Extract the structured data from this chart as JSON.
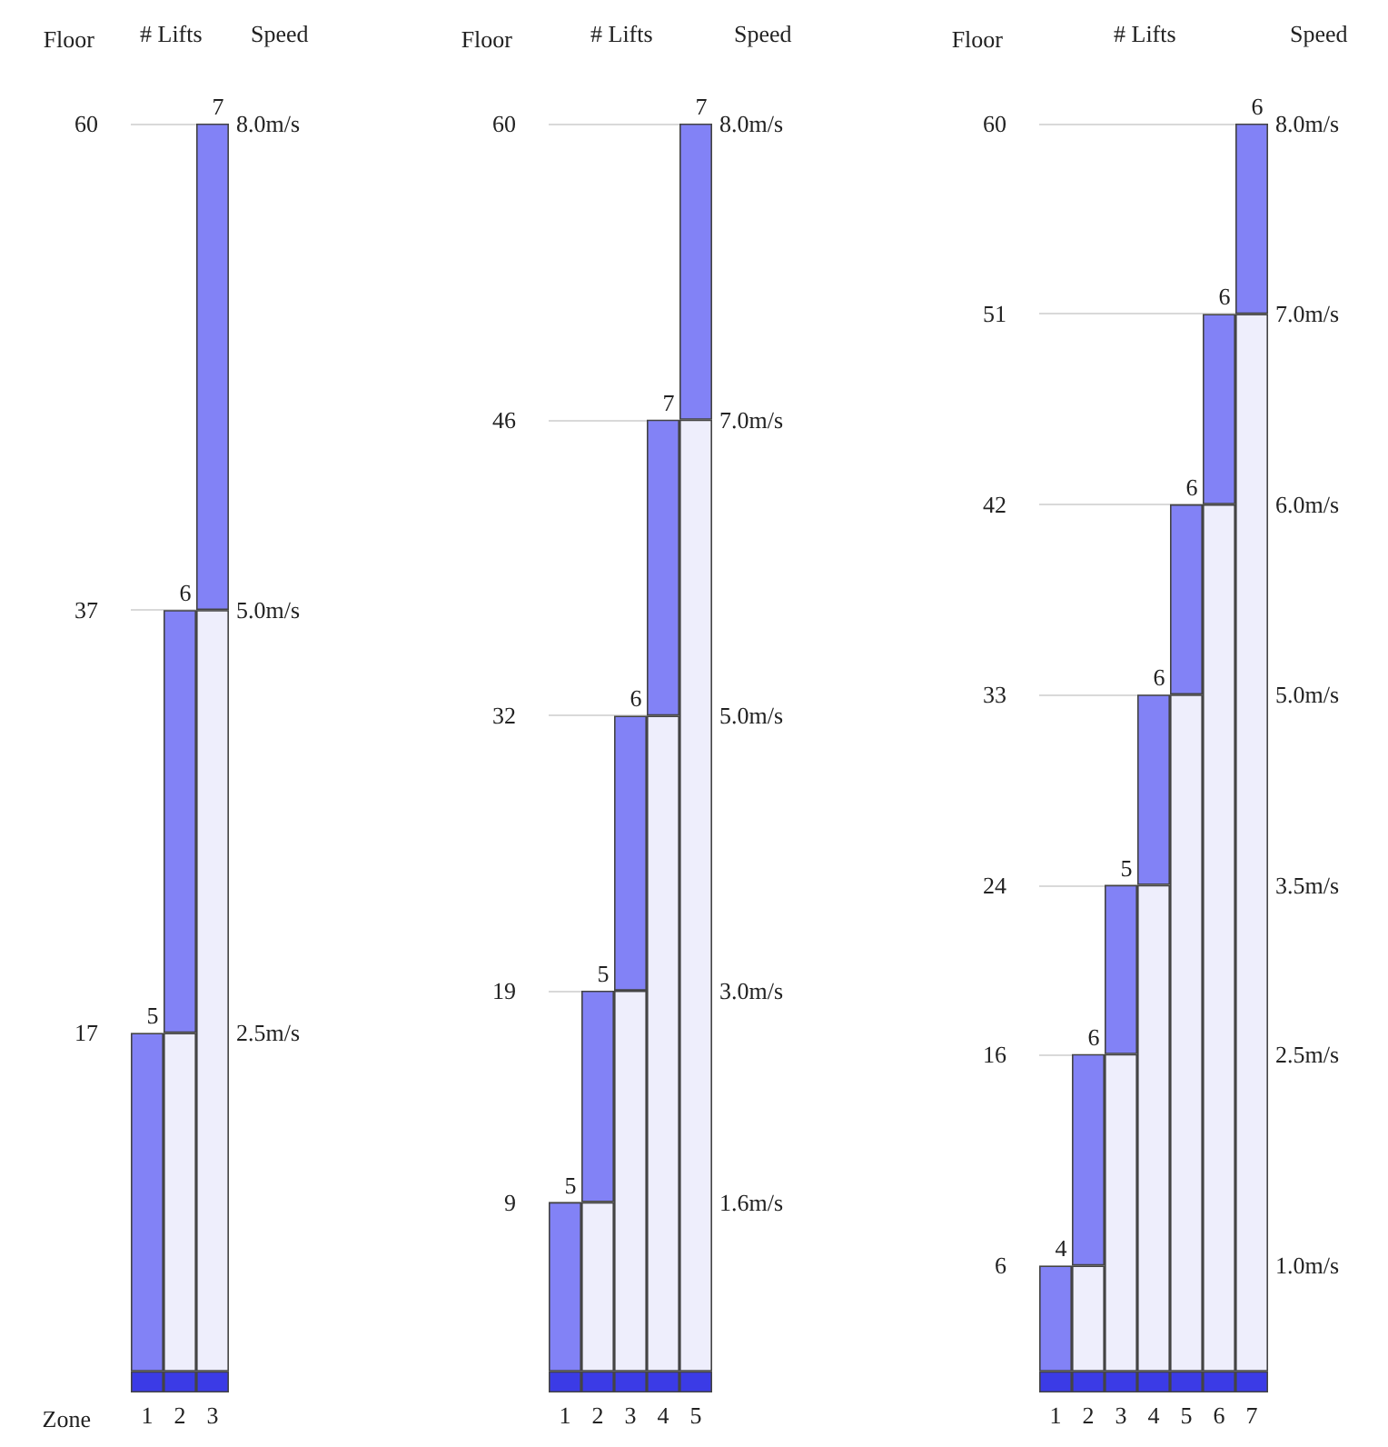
{
  "chart_data": [
    {
      "type": "bar",
      "stacked": true,
      "ylabel": "Floor",
      "xlabel": "Zone",
      "categories": [
        "1",
        "2",
        "3"
      ],
      "series": [
        {
          "color": "#3b3be6",
          "values": [
            1,
            1,
            1
          ]
        },
        {
          "color": "#eeeefc",
          "values": [
            null,
            16,
            36
          ]
        },
        {
          "color": "#8282f6",
          "values": [
            16,
            20,
            23
          ]
        }
      ],
      "ylim": [
        0,
        60
      ],
      "yticks": [
        17,
        37,
        60
      ],
      "grid": "y",
      "annotations": [
        "# Lifts",
        "Speed",
        "5",
        "6",
        "7",
        "2.5m/s",
        "5.0m/s",
        "8.0m/s"
      ]
    },
    {
      "type": "bar",
      "stacked": true,
      "ylabel": "Floor",
      "categories": [
        "1",
        "2",
        "3",
        "4",
        "5"
      ],
      "series": [
        {
          "color": "#3b3be6",
          "values": [
            1,
            1,
            1,
            1,
            1
          ]
        },
        {
          "color": "#eeeefc",
          "values": [
            null,
            8,
            18,
            31,
            45
          ]
        },
        {
          "color": "#8282f6",
          "values": [
            8,
            10,
            13,
            14,
            14
          ]
        }
      ],
      "ylim": [
        0,
        60
      ],
      "yticks": [
        9,
        19,
        32,
        46,
        60
      ],
      "grid": "y",
      "annotations": [
        "# Lifts",
        "Speed",
        "5",
        "5",
        "6",
        "7",
        "7",
        "1.6m/s",
        "3.0m/s",
        "5.0m/s",
        "7.0m/s",
        "8.0m/s"
      ]
    },
    {
      "type": "bar",
      "stacked": true,
      "ylabel": "Floor",
      "categories": [
        "1",
        "2",
        "3",
        "4",
        "5",
        "6",
        "7"
      ],
      "series": [
        {
          "color": "#3b3be6",
          "values": [
            1,
            1,
            1,
            1,
            1,
            1,
            1
          ]
        },
        {
          "color": "#eeeefc",
          "values": [
            null,
            5,
            15,
            23,
            32,
            41,
            50
          ]
        },
        {
          "color": "#8282f6",
          "values": [
            5,
            10,
            8,
            9,
            9,
            9,
            9
          ]
        }
      ],
      "ylim": [
        0,
        60
      ],
      "yticks": [
        6,
        16,
        24,
        33,
        42,
        51,
        60
      ],
      "grid": "y",
      "annotations": [
        "# Lifts",
        "Speed",
        "4",
        "6",
        "5",
        "6",
        "6",
        "6",
        "6",
        "1.0m/s",
        "2.5m/s",
        "3.5m/s",
        "5.0m/s",
        "6.0m/s",
        "7.0m/s",
        "8.0m/s"
      ]
    }
  ]
}
